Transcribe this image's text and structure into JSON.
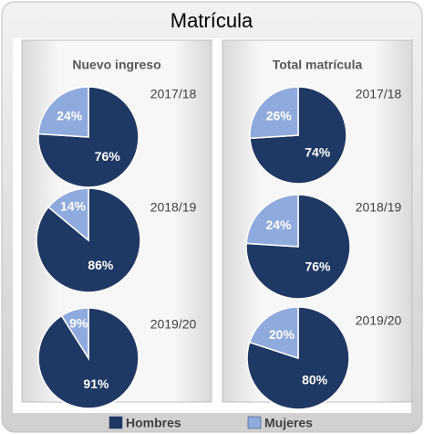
{
  "title": "Matrícula",
  "panels": [
    "Nuevo ingreso",
    "Total matrícula"
  ],
  "chart_data": [
    {
      "type": "pie",
      "subtitle": "2017/18",
      "categories": [
        "Hombres",
        "Mujeres"
      ],
      "values": [
        76,
        24
      ],
      "value_labels": [
        "76%",
        "24%"
      ],
      "colors": [
        "#1f3864",
        "#8faadc"
      ]
    },
    {
      "type": "pie",
      "subtitle": "2018/19",
      "categories": [
        "Hombres",
        "Mujeres"
      ],
      "values": [
        86,
        14
      ],
      "value_labels": [
        "86%",
        "14%"
      ],
      "colors": [
        "#1f3864",
        "#8faadc"
      ]
    },
    {
      "type": "pie",
      "subtitle": "2019/20",
      "categories": [
        "Hombres",
        "Mujeres"
      ],
      "values": [
        91,
        9
      ],
      "value_labels": [
        "91%",
        "9%"
      ],
      "colors": [
        "#1f3864",
        "#8faadc"
      ]
    },
    {
      "type": "pie",
      "subtitle": "2017/18",
      "categories": [
        "Hombres",
        "Mujeres"
      ],
      "values": [
        74,
        26
      ],
      "value_labels": [
        "74%",
        "26%"
      ],
      "colors": [
        "#1f3864",
        "#8faadc"
      ]
    },
    {
      "type": "pie",
      "subtitle": "2018/19",
      "categories": [
        "Hombres",
        "Mujeres"
      ],
      "values": [
        76,
        24
      ],
      "value_labels": [
        "76%",
        "24%"
      ],
      "colors": [
        "#1f3864",
        "#8faadc"
      ]
    },
    {
      "type": "pie",
      "subtitle": "2019/20",
      "categories": [
        "Hombres",
        "Mujeres"
      ],
      "values": [
        80,
        20
      ],
      "value_labels": [
        "80%",
        "20%"
      ],
      "colors": [
        "#1f3864",
        "#8faadc"
      ]
    }
  ]
}
